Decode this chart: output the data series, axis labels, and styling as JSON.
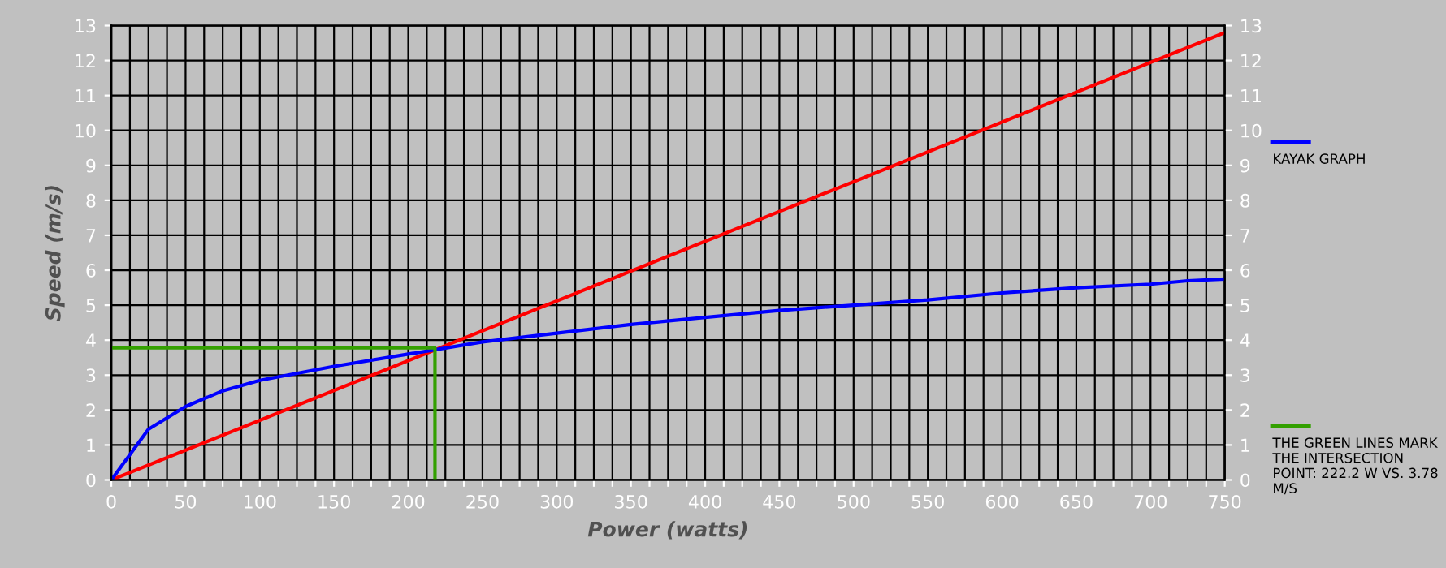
{
  "chart_data": {
    "type": "line",
    "xlabel": "Power (watts)",
    "ylabel": "Speed (m/s)",
    "xlim": [
      0,
      750
    ],
    "ylim": [
      0,
      13
    ],
    "y2lim": [
      0,
      13
    ],
    "xticks": [
      0,
      {
        "value": 12.5,
        "label": null
      },
      {
        "value": 25,
        "label": null
      },
      {
        "value": 37.5,
        "label": null
      },
      50,
      {
        "value": 62.5,
        "label": null
      },
      {
        "value": 75,
        "label": null
      },
      {
        "value": 87.5,
        "label": null
      },
      100,
      {
        "value": 112.5,
        "label": null
      },
      {
        "value": 125,
        "label": null
      },
      {
        "value": 137.5,
        "label": null
      },
      150,
      {
        "value": 162.5,
        "label": null
      },
      {
        "value": 175,
        "label": null
      },
      {
        "value": 187.5,
        "label": null
      },
      200,
      {
        "value": 212.5,
        "label": null
      },
      {
        "value": 225,
        "label": null
      },
      {
        "value": 237.5,
        "label": null
      },
      250,
      {
        "value": 262.5,
        "label": null
      },
      {
        "value": 275,
        "label": null
      },
      {
        "value": 287.5,
        "label": null
      },
      300,
      {
        "value": 312.5,
        "label": null
      },
      {
        "value": 325,
        "label": null
      },
      {
        "value": 337.5,
        "label": null
      },
      350,
      {
        "value": 362.5,
        "label": null
      },
      {
        "value": 375,
        "label": null
      },
      {
        "value": 387.5,
        "label": null
      },
      400,
      {
        "value": 412.5,
        "label": null
      },
      {
        "value": 425,
        "label": null
      },
      {
        "value": 437.5,
        "label": null
      },
      450,
      {
        "value": 462.5,
        "label": null
      },
      {
        "value": 475,
        "label": null
      },
      {
        "value": 487.5,
        "label": null
      },
      500,
      {
        "value": 512.5,
        "label": null
      },
      {
        "value": 525,
        "label": null
      },
      {
        "value": 537.5,
        "label": null
      },
      550,
      {
        "value": 562.5,
        "label": null
      },
      {
        "value": 575,
        "label": null
      },
      {
        "value": 587.5,
        "label": null
      },
      600,
      {
        "value": 612.5,
        "label": null
      },
      {
        "value": 625,
        "label": null
      },
      {
        "value": 637.5,
        "label": null
      },
      650,
      {
        "value": 662.5,
        "label": null
      },
      {
        "value": 675,
        "label": null
      },
      {
        "value": 687.5,
        "label": null
      },
      700,
      {
        "value": 712.5,
        "label": null
      },
      {
        "value": 725,
        "label": null
      },
      {
        "value": 737.5,
        "label": null
      },
      750
    ],
    "yticks": [
      0,
      1,
      2,
      3,
      4,
      5,
      6,
      7,
      8,
      9,
      10,
      11,
      12,
      13
    ],
    "y2ticks": [
      0,
      1,
      2,
      3,
      4,
      5,
      6,
      7,
      8,
      9,
      10,
      11,
      12,
      13
    ],
    "grid": true,
    "legend": "right",
    "marker": "none",
    "line_style": "solid",
    "series": [
      {
        "color": "#ff0000",
        "x": [
          0,
          750
        ],
        "values": [
          0,
          12.8
        ]
      },
      {
        "name": "KAYAK GRAPH",
        "color": "#0000ff",
        "x": [
          0,
          25,
          50,
          75,
          100,
          150,
          200,
          250,
          300,
          350,
          400,
          450,
          500,
          550,
          600,
          650,
          700,
          725,
          750
        ],
        "values": [
          0,
          1.45,
          2.1,
          2.55,
          2.85,
          3.25,
          3.6,
          3.95,
          4.2,
          4.45,
          4.65,
          4.85,
          5.0,
          5.15,
          5.35,
          5.5,
          5.6,
          5.7,
          5.75
        ]
      },
      {
        "name": "THE GREEN LINES MARK THE INTERSECTION POINT: 222.2 W VS. 3.78 M/S",
        "color": "#33a000",
        "x": [
          0,
          218,
          218
        ],
        "values": [
          3.78,
          3.78,
          0
        ]
      }
    ]
  }
}
